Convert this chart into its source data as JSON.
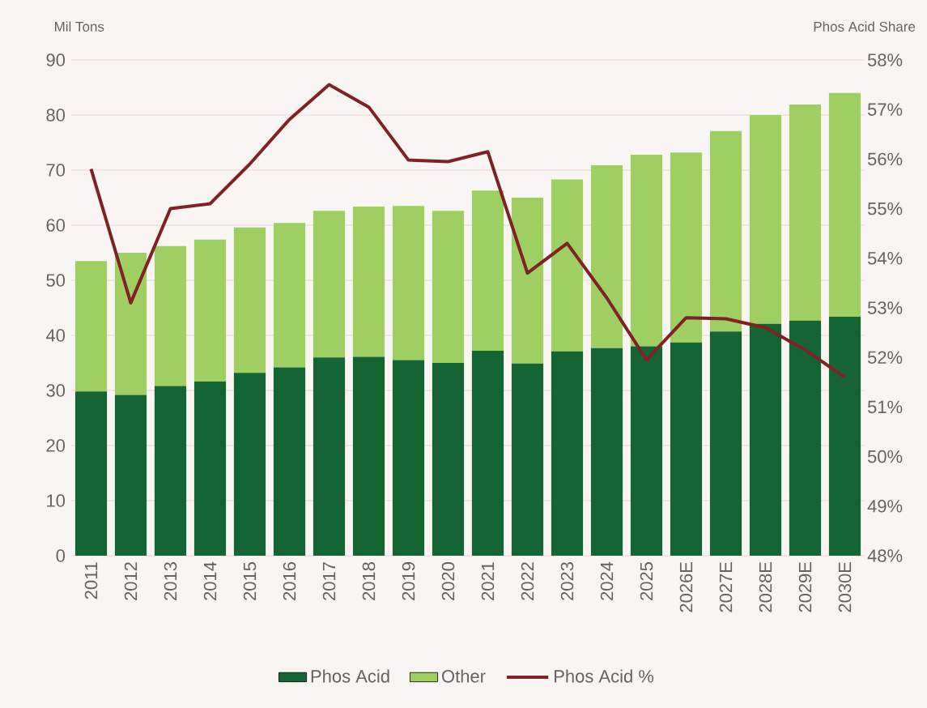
{
  "chart_data": {
    "type": "bar",
    "stacked": true,
    "categories": [
      "2011",
      "2012",
      "2013",
      "2014",
      "2015",
      "2016",
      "2017",
      "2018",
      "2019",
      "2020",
      "2021",
      "2022",
      "2023",
      "2024",
      "2025",
      "2026E",
      "2027E",
      "2028E",
      "2029E",
      "2030E"
    ],
    "ylabel": "Mil Tons",
    "y2label": "Phos Acid Share",
    "ylim": [
      0,
      90
    ],
    "yticks": [
      0,
      10,
      20,
      30,
      40,
      50,
      60,
      70,
      80,
      90
    ],
    "y2lim": [
      48,
      58
    ],
    "y2ticks": [
      {
        "value": 48,
        "label": "48%"
      },
      {
        "value": 49,
        "label": "49%"
      },
      {
        "value": 50,
        "label": "50%"
      },
      {
        "value": 51,
        "label": "51%"
      },
      {
        "value": 52,
        "label": "52%"
      },
      {
        "value": 53,
        "label": "53%"
      },
      {
        "value": 54,
        "label": "54%"
      },
      {
        "value": 55,
        "label": "55%"
      },
      {
        "value": 56,
        "label": "56%"
      },
      {
        "value": 57,
        "label": "57%"
      },
      {
        "value": 58,
        "label": "58%"
      }
    ],
    "grid": "y",
    "legend": "bottom",
    "series": [
      {
        "name": "Phos Acid",
        "color": "#146434",
        "values": [
          29.8,
          29.2,
          30.8,
          31.6,
          33.2,
          34.2,
          36.0,
          36.1,
          35.5,
          35.0,
          37.2,
          34.9,
          37.1,
          37.7,
          38.0,
          38.7,
          40.7,
          42.1,
          42.7,
          43.4
        ]
      },
      {
        "name": "Other",
        "color": "#9fcf62",
        "values": [
          23.7,
          25.8,
          25.4,
          25.8,
          26.4,
          26.2,
          26.6,
          27.3,
          28.0,
          27.6,
          29.1,
          30.1,
          31.2,
          33.2,
          34.8,
          34.5,
          36.4,
          37.9,
          39.2,
          40.6
        ]
      },
      {
        "name": "Phos Acid %",
        "type": "line",
        "axis": "y2",
        "color": "#7f2226",
        "marker": "none",
        "line_style": "solid",
        "values": [
          55.8,
          53.1,
          55.0,
          55.1,
          55.9,
          56.8,
          57.5,
          57.05,
          55.98,
          55.95,
          56.15,
          53.7,
          54.3,
          53.2,
          51.95,
          52.8,
          52.78,
          52.6,
          52.15,
          51.6
        ]
      }
    ]
  }
}
